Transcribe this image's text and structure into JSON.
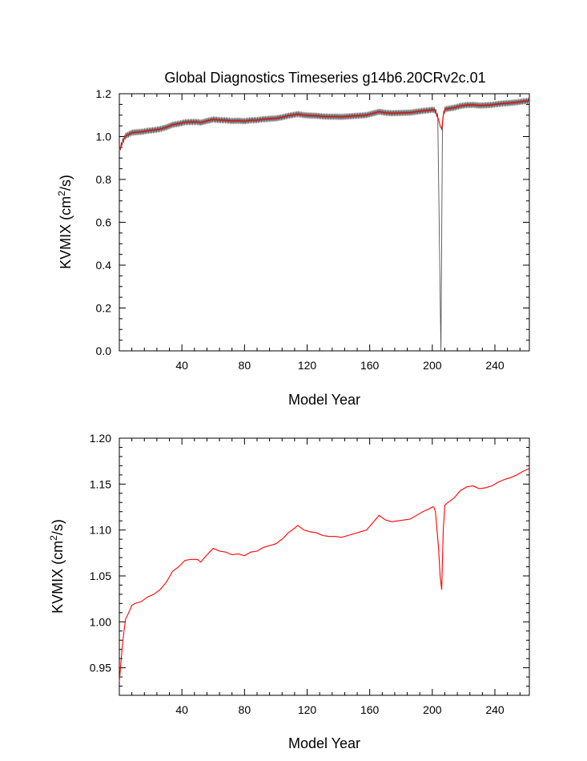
{
  "chart_data": [
    {
      "type": "line",
      "title": "Global Diagnostics Timeseries g14b6.20CRv2c.01",
      "xlabel": "Model Year",
      "ylabel_main": "KVMIX (cm",
      "ylabel_sup": "2",
      "ylabel_tail": "/s)",
      "xlim": [
        0,
        262
      ],
      "ylim": [
        0.0,
        1.2
      ],
      "xticks": [
        40,
        80,
        120,
        160,
        200,
        240
      ],
      "xtick_labels": [
        "40",
        "80",
        "120",
        "160",
        "200",
        "240"
      ],
      "yticks": [
        0.0,
        0.2,
        0.4,
        0.6,
        0.8,
        1.0,
        1.2
      ],
      "ytick_labels": [
        "0.0",
        "0.2",
        "0.4",
        "0.6",
        "0.8",
        "1.0",
        "1.2"
      ],
      "grid": false,
      "series": [
        {
          "style": "monthly",
          "color": "#000000",
          "oscillation_amplitude": 0.012,
          "dropout": {
            "x_start": 203.5,
            "x_min": 205.5,
            "x_end": 206.5,
            "y_min": 0.0
          }
        },
        {
          "style": "annual-mean",
          "color": "#ff0000",
          "x": [
            0,
            1,
            2,
            3,
            4,
            6,
            8,
            10,
            14,
            18,
            22,
            26,
            30,
            34,
            38,
            42,
            46,
            50,
            52,
            56,
            60,
            64,
            68,
            72,
            76,
            80,
            84,
            88,
            92,
            96,
            100,
            104,
            108,
            112,
            114,
            118,
            122,
            126,
            130,
            134,
            138,
            142,
            146,
            150,
            154,
            158,
            162,
            166,
            170,
            174,
            178,
            182,
            186,
            190,
            194,
            198,
            200,
            201,
            202,
            204,
            205,
            206,
            207,
            208,
            210,
            214,
            218,
            222,
            226,
            230,
            234,
            238,
            242,
            246,
            250,
            254,
            258,
            262
          ],
          "y": [
            0.935,
            0.955,
            0.975,
            0.99,
            1.003,
            1.01,
            1.018,
            1.02,
            1.022,
            1.027,
            1.03,
            1.035,
            1.043,
            1.055,
            1.06,
            1.067,
            1.068,
            1.068,
            1.065,
            1.073,
            1.08,
            1.077,
            1.076,
            1.073,
            1.074,
            1.072,
            1.076,
            1.077,
            1.081,
            1.083,
            1.085,
            1.09,
            1.097,
            1.102,
            1.105,
            1.1,
            1.098,
            1.097,
            1.094,
            1.093,
            1.093,
            1.092,
            1.094,
            1.096,
            1.098,
            1.1,
            1.108,
            1.116,
            1.111,
            1.109,
            1.11,
            1.111,
            1.112,
            1.116,
            1.12,
            1.123,
            1.125,
            1.125,
            1.12,
            1.08,
            1.05,
            1.035,
            1.1,
            1.127,
            1.13,
            1.135,
            1.143,
            1.147,
            1.148,
            1.145,
            1.146,
            1.148,
            1.152,
            1.155,
            1.157,
            1.16,
            1.164,
            1.167
          ]
        }
      ]
    },
    {
      "type": "line",
      "xlabel": "Model Year",
      "ylabel_main": "KVMIX (cm",
      "ylabel_sup": "2",
      "ylabel_tail": "/s)",
      "xlim": [
        0,
        262
      ],
      "ylim": [
        0.92,
        1.2
      ],
      "xticks": [
        40,
        80,
        120,
        160,
        200,
        240
      ],
      "xtick_labels": [
        "40",
        "80",
        "120",
        "160",
        "200",
        "240"
      ],
      "yticks": [
        0.95,
        1.0,
        1.05,
        1.1,
        1.15,
        1.2
      ],
      "ytick_labels": [
        "0.95",
        "1.00",
        "1.05",
        "1.10",
        "1.15",
        "1.20"
      ],
      "grid": false,
      "series": [
        {
          "style": "annual-mean",
          "color": "#ff0000",
          "x": [
            0,
            1,
            2,
            3,
            4,
            6,
            8,
            10,
            14,
            18,
            22,
            26,
            30,
            34,
            38,
            42,
            46,
            50,
            52,
            56,
            60,
            64,
            68,
            72,
            76,
            80,
            84,
            88,
            92,
            96,
            100,
            104,
            108,
            112,
            114,
            118,
            122,
            126,
            130,
            134,
            138,
            142,
            146,
            150,
            154,
            158,
            162,
            166,
            170,
            174,
            178,
            182,
            186,
            190,
            194,
            198,
            200,
            201,
            202,
            204,
            205,
            206,
            207,
            208,
            210,
            214,
            218,
            222,
            226,
            230,
            234,
            238,
            242,
            246,
            250,
            254,
            258,
            262
          ],
          "y": [
            0.935,
            0.955,
            0.975,
            0.99,
            1.003,
            1.01,
            1.018,
            1.02,
            1.022,
            1.027,
            1.03,
            1.035,
            1.043,
            1.055,
            1.06,
            1.067,
            1.068,
            1.068,
            1.065,
            1.073,
            1.08,
            1.077,
            1.076,
            1.073,
            1.074,
            1.072,
            1.076,
            1.077,
            1.081,
            1.083,
            1.085,
            1.09,
            1.097,
            1.102,
            1.105,
            1.1,
            1.098,
            1.097,
            1.094,
            1.093,
            1.093,
            1.092,
            1.094,
            1.096,
            1.098,
            1.1,
            1.108,
            1.116,
            1.111,
            1.109,
            1.11,
            1.111,
            1.112,
            1.116,
            1.12,
            1.123,
            1.125,
            1.125,
            1.12,
            1.08,
            1.05,
            1.035,
            1.1,
            1.127,
            1.13,
            1.135,
            1.143,
            1.147,
            1.148,
            1.145,
            1.146,
            1.148,
            1.152,
            1.155,
            1.157,
            1.16,
            1.164,
            1.167
          ]
        }
      ]
    }
  ]
}
